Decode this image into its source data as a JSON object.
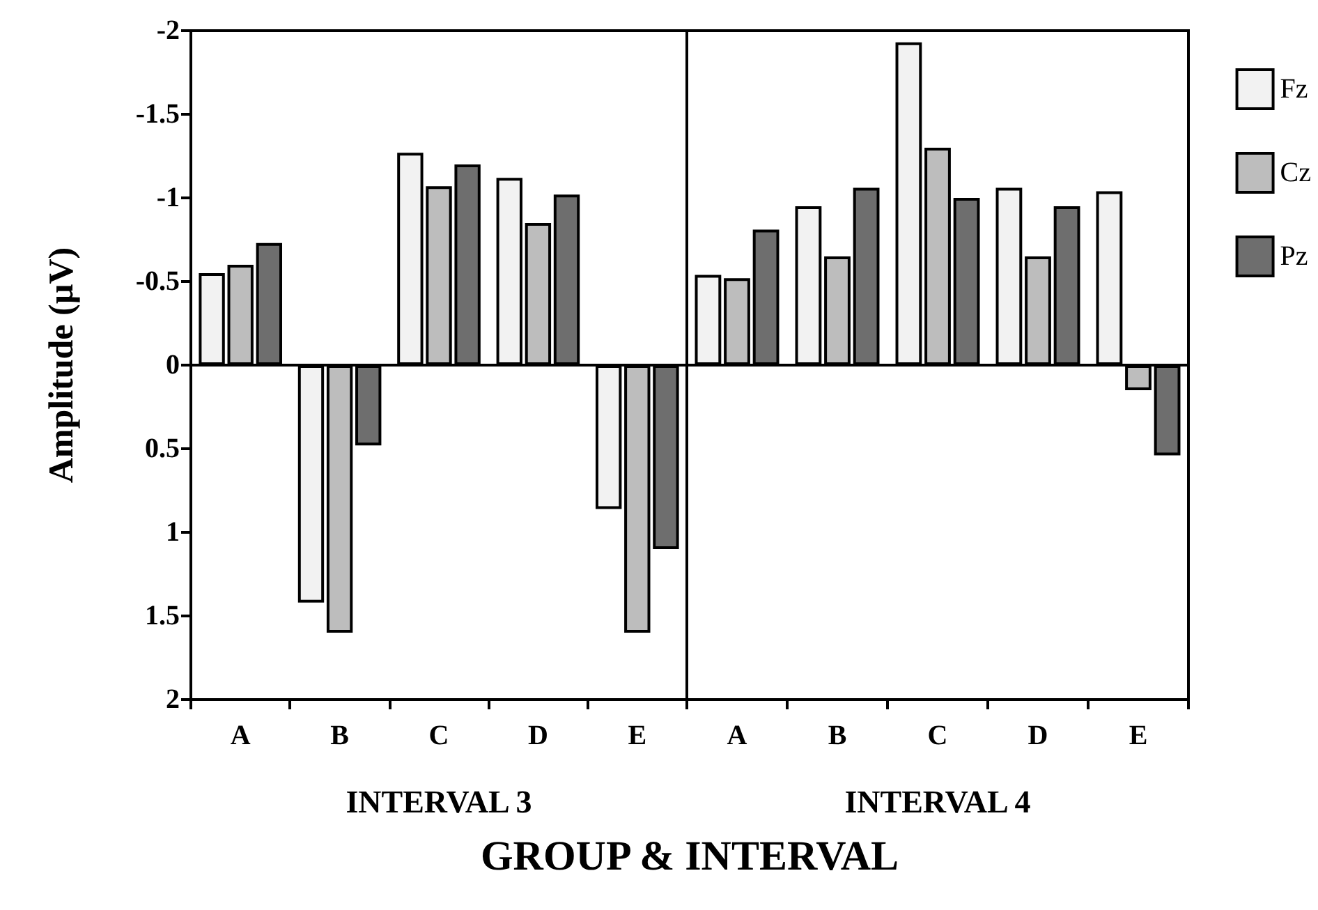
{
  "chart_data": [
    {
      "type": "bar",
      "xlabel": "INTERVAL 3",
      "ylabel": "Amplitude (µV)",
      "categories": [
        "A",
        "B",
        "C",
        "D",
        "E"
      ],
      "series": [
        {
          "color": "#f2f2f2",
          "values": [
            -0.55,
            1.42,
            -1.27,
            -1.12,
            0.86
          ]
        },
        {
          "color": "#bdbdbd",
          "values": [
            -0.6,
            1.6,
            -1.07,
            -0.85,
            1.6
          ]
        },
        {
          "color": "#6e6e6e",
          "values": [
            -0.73,
            0.48,
            -1.2,
            -1.02,
            1.1
          ]
        }
      ],
      "ylim": [
        2,
        -2
      ],
      "yticks": [
        -2,
        -1.5,
        -1,
        -0.5,
        0,
        0.5,
        1,
        1.5,
        2
      ],
      "grid": false,
      "legend": false,
      "ref_lines": [
        {
          "axis": "y",
          "value": 0
        }
      ]
    },
    {
      "type": "bar",
      "xlabel": "INTERVAL 4",
      "categories": [
        "A",
        "B",
        "C",
        "D",
        "E"
      ],
      "series": [
        {
          "name": "Fz",
          "color": "#f2f2f2",
          "values": [
            -0.54,
            -0.95,
            -1.93,
            -1.06,
            -1.04
          ]
        },
        {
          "name": "Cz",
          "color": "#bdbdbd",
          "values": [
            -0.52,
            -0.65,
            -1.3,
            -0.65,
            0.15
          ]
        },
        {
          "name": "Pz",
          "color": "#6e6e6e",
          "values": [
            -0.81,
            -1.06,
            -1.0,
            -0.95,
            0.54
          ]
        }
      ],
      "ylim": [
        2,
        -2
      ],
      "yticks": [
        -2,
        -1.5,
        -1,
        -0.5,
        0,
        0.5,
        1,
        1.5,
        2
      ],
      "grid": false,
      "legend": "right",
      "tick_labels": "x",
      "ref_lines": [
        {
          "axis": "y",
          "value": 0
        }
      ],
      "annotations": [
        "GROUP & INTERVAL"
      ]
    }
  ]
}
